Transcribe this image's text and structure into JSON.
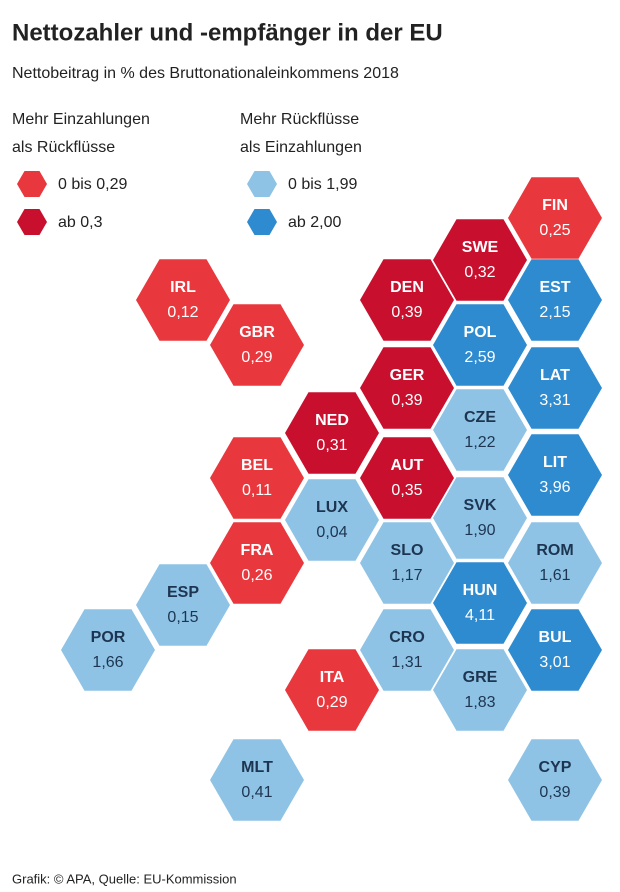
{
  "chart_data": {
    "type": "hexmap",
    "title": "Nettozahler und -empfänger in der EU",
    "subtitle": "Nettobeitrag in % des Bruttonationaleinkommens 2018",
    "source": "Grafik: © APA, Quelle: EU-Kommission",
    "legend_groups": [
      {
        "title": [
          "Mehr Einzahlungen",
          "als Rückflüsse"
        ]
      },
      {
        "title": [
          "Mehr Rückflüsse",
          "als Einzahlungen"
        ]
      }
    ],
    "series": [
      {
        "name": "0 bis 0,29",
        "color": "#e8383d",
        "text_color": "#ffffff",
        "categories": [
          "IRL",
          "GBR",
          "FIN",
          "BEL",
          "FRA",
          "ITA"
        ],
        "values": [
          0.12,
          0.29,
          0.25,
          0.11,
          0.26,
          0.29
        ],
        "value_labels": [
          "0,12",
          "0,29",
          "0,25",
          "0,11",
          "0,26",
          "0,29"
        ]
      },
      {
        "name": "ab 0,3",
        "color": "#c8102e",
        "text_color": "#ffffff",
        "categories": [
          "SWE",
          "DEN",
          "GER",
          "NED",
          "AUT"
        ],
        "values": [
          0.32,
          0.39,
          0.39,
          0.31,
          0.35
        ],
        "value_labels": [
          "0,32",
          "0,39",
          "0,39",
          "0,31",
          "0,35"
        ]
      },
      {
        "name": "0 bis 1,99",
        "color": "#8ec3e6",
        "text_color": "#1d3550",
        "categories": [
          "LUX",
          "CZE",
          "SVK",
          "ROM",
          "SLO",
          "ESP",
          "POR",
          "CRO",
          "GRE",
          "MLT",
          "CYP"
        ],
        "values": [
          0.04,
          1.22,
          1.9,
          1.61,
          1.17,
          0.15,
          1.66,
          1.31,
          1.83,
          0.41,
          0.39
        ],
        "value_labels": [
          "0,04",
          "1,22",
          "1,90",
          "1,61",
          "1,17",
          "0,15",
          "1,66",
          "1,31",
          "1,83",
          "0,41",
          "0,39"
        ]
      },
      {
        "name": "ab 2,00",
        "color": "#2e8bd0",
        "text_color": "#ffffff",
        "categories": [
          "EST",
          "POL",
          "LAT",
          "LIT",
          "HUN",
          "BUL"
        ],
        "values": [
          2.15,
          2.59,
          3.31,
          3.96,
          4.11,
          3.01
        ],
        "value_labels": [
          "2,15",
          "2,59",
          "3,31",
          "3,96",
          "4,11",
          "3,01"
        ]
      }
    ]
  }
}
